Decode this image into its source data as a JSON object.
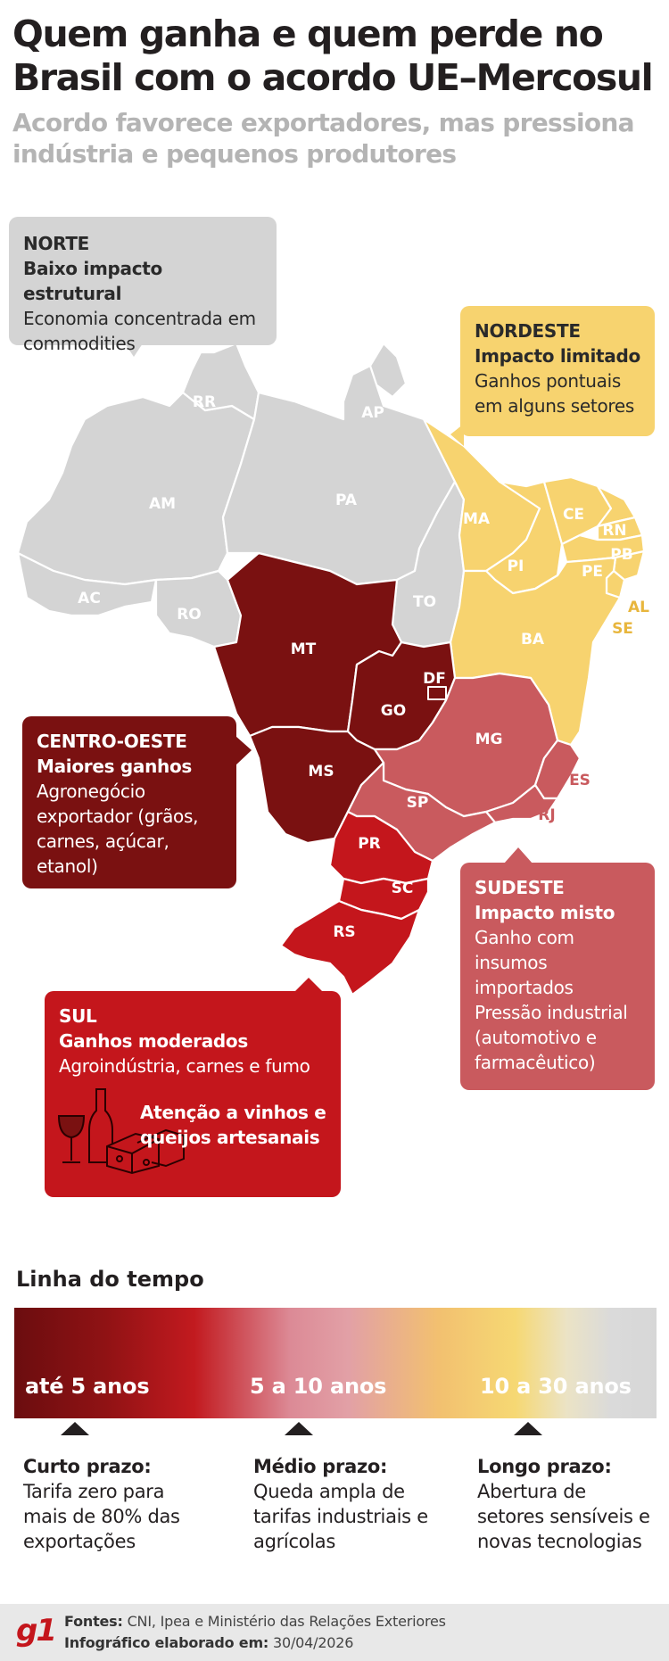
{
  "header": {
    "title": "Quem ganha e quem perde no Brasil com o acordo UE–Mercosul",
    "subtitle": "Acordo favorece exportadores, mas pressiona indústria e pequenos produtores"
  },
  "colors": {
    "low_impact": "#d4d4d4",
    "limited_impact": "#f7d36f",
    "major_gains": "#7a1111",
    "mixed_impact": "#c95a5e",
    "moderate_gains": "#c4161c"
  },
  "regions": {
    "norte": {
      "name": "NORTE",
      "impact": "Baixo impacto estrutural",
      "text": "Economia concentrada em commodities"
    },
    "nordeste": {
      "name": "NORDESTE",
      "impact": "Impacto limitado",
      "text": "Ganhos pontuais em alguns setores"
    },
    "centro_oeste": {
      "name": "CENTRO-OESTE",
      "impact": "Maiores ganhos",
      "text": "Agronegócio exportador (grãos, carnes, açúcar, etanol)"
    },
    "sudeste": {
      "name": "SUDESTE",
      "impact": "Impacto misto",
      "text": "Ganho com insumos importados Pressão industrial (automotivo e farmacêutico)"
    },
    "sul": {
      "name": "SUL",
      "impact": "Ganhos moderados",
      "text": "Agroindústria, carnes e fumo",
      "attention": "Atenção a vinhos e queijos artesanais",
      "icon": "wine-cheese-icon"
    }
  },
  "states": [
    "RR",
    "AP",
    "AM",
    "PA",
    "MA",
    "CE",
    "RN",
    "PB",
    "PE",
    "AL",
    "SE",
    "PI",
    "AC",
    "RO",
    "TO",
    "BA",
    "MT",
    "DF",
    "GO",
    "MG",
    "MS",
    "ES",
    "SP",
    "RJ",
    "PR",
    "SC",
    "RS"
  ],
  "timeline": {
    "title": "Linha do tempo",
    "periods": [
      {
        "range": "até 5 anos",
        "head": "Curto prazo:",
        "text": "Tarifa zero para mais de 80% das exportações"
      },
      {
        "range": "5 a 10 anos",
        "head": "Médio prazo:",
        "text": "Queda ampla de tarifas industriais e agrícolas"
      },
      {
        "range": "10 a 30 anos",
        "head": "Longo prazo:",
        "text": "Abertura de setores sensíveis e novas tecnologias"
      }
    ]
  },
  "footer": {
    "logo": "g1",
    "sources_label": "Fontes:",
    "sources": "CNI, Ipea e Ministério das Relações Exteriores",
    "date_label": "Infográfico elaborado em:",
    "date": "30/04/2026"
  }
}
